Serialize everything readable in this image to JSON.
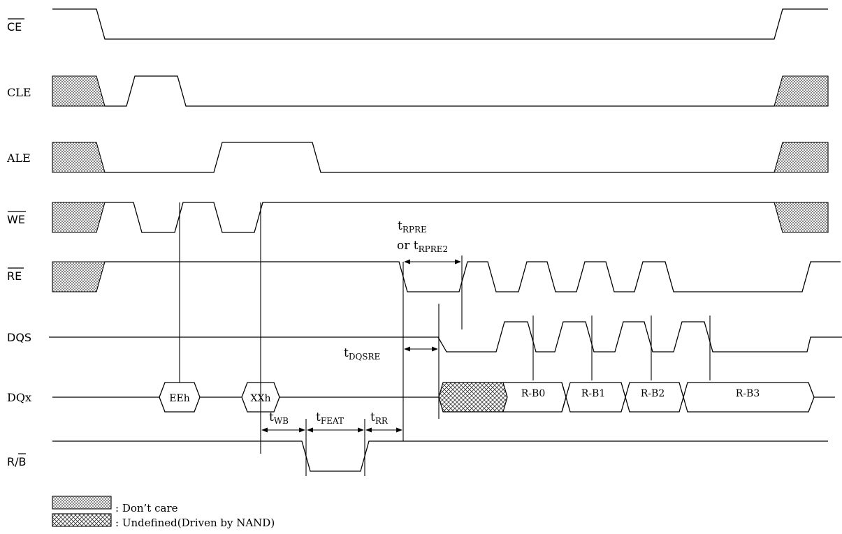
{
  "signals": [
    {
      "id": "ce",
      "label": "CE",
      "overbar": true
    },
    {
      "id": "cle",
      "label": "CLE",
      "overbar": false
    },
    {
      "id": "ale",
      "label": "ALE",
      "overbar": false
    },
    {
      "id": "we",
      "label": "WE",
      "overbar": true
    },
    {
      "id": "re",
      "label": "RE",
      "overbar": true
    },
    {
      "id": "dqs",
      "label": "DQS",
      "overbar": false
    },
    {
      "id": "dqx",
      "label": "DQx",
      "overbar": false
    },
    {
      "id": "rb",
      "label_prefix": "R/",
      "label_suffix": "B",
      "suffix_overbar": true
    }
  ],
  "dq_bus": {
    "command": "EEh",
    "address": "XXh",
    "data": [
      "R-B0",
      "R-B1",
      "R-B2",
      "R-B3"
    ]
  },
  "timings": {
    "trpre": {
      "main": "t",
      "sub": "RPRE",
      "alt_prefix": "or t",
      "alt_sub": "RPRE2"
    },
    "tdqsre": {
      "main": "t",
      "sub": "DQSRE"
    },
    "twb": {
      "main": "t",
      "sub": "WB"
    },
    "tfeat": {
      "main": "t",
      "sub": "FEAT"
    },
    "trr": {
      "main": "t",
      "sub": "RR"
    }
  },
  "legend": {
    "dont_care": ": Don’t care",
    "undefined": ": Undefined(Driven by NAND)"
  }
}
